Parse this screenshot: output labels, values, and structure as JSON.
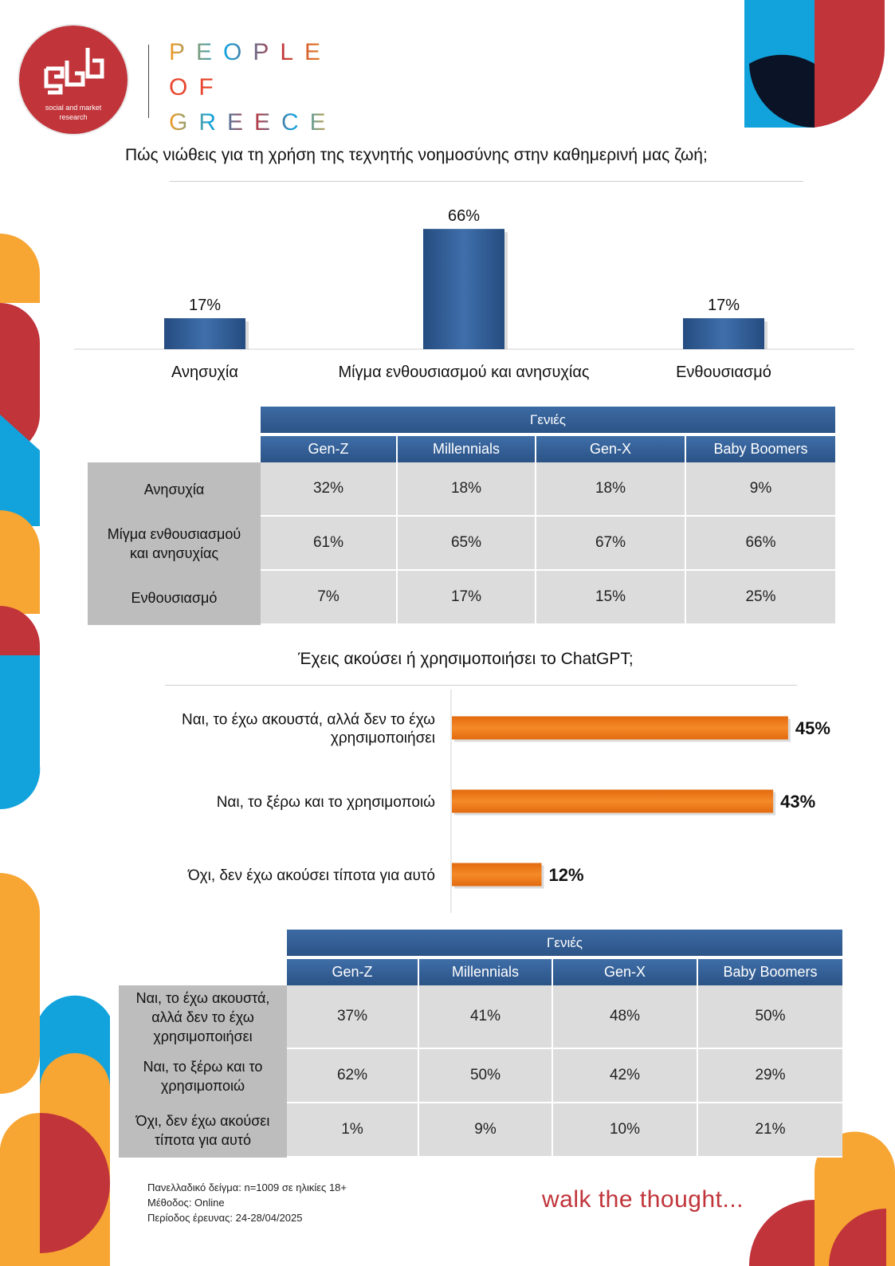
{
  "brand": {
    "logo_caption_line1": "social and market",
    "logo_caption_line2": "research",
    "name_line1": "PEOPLE",
    "name_line2": "OF",
    "name_line3": "GREECE"
  },
  "colors": {
    "navy_bar": "#2f5a94",
    "orange_bar": "#f07d1a",
    "red": "#c0343a",
    "blue": "#12a3dc",
    "orange": "#f7a533",
    "dark": "#0b1327"
  },
  "chart1": {
    "title": "Πώς νιώθεις για τη χρήση της τεχνητής νοημοσύνης στην καθημερινή μας ζωή;"
  },
  "chart2": {
    "title": "Έχεις ακούσει ή χρησιμοποιήσει το ChatGPT;"
  },
  "chart_data": [
    {
      "type": "bar",
      "title": "Πώς νιώθεις για τη χρήση της τεχνητής νοημοσύνης στην καθημερινή μας ζωή;",
      "categories": [
        "Ανησυχία",
        "Μίγμα ενθουσιασμού και ανησυχίας",
        "Ενθουσιασμό"
      ],
      "values": [
        17,
        66,
        17
      ],
      "value_labels": [
        "17%",
        "66%",
        "17%"
      ],
      "ylim": [
        0,
        70
      ]
    },
    {
      "type": "bar",
      "orientation": "horizontal",
      "title": "Έχεις ακούσει ή χρησιμοποιήσει το ChatGPT;",
      "categories": [
        "Ναι, το έχω ακουστά, αλλά δεν το έχω χρησιμοποιήσει",
        "Ναι, το ξέρω και το χρησιμοποιώ",
        "Όχι, δεν έχω ακούσει τίποτα για αυτό"
      ],
      "category_lines": [
        [
          "Ναι, το έχω ακουστά, αλλά δεν το έχω",
          "χρησιμοποιήσει"
        ],
        [
          "Ναι, το ξέρω και το χρησιμοποιώ"
        ],
        [
          "Όχι, δεν έχω ακούσει τίποτα για αυτό"
        ]
      ],
      "values": [
        45,
        43,
        12
      ],
      "value_labels": [
        "45%",
        "43%",
        "12%"
      ],
      "xlim": [
        0,
        48
      ]
    }
  ],
  "table1": {
    "group_header": "Γενιές",
    "columns": [
      "Gen-Z",
      "Millennials",
      "Gen-X",
      "Baby Boomers"
    ],
    "rows": [
      {
        "label_lines": [
          "Ανησυχία"
        ],
        "values": [
          "32%",
          "18%",
          "18%",
          "9%"
        ]
      },
      {
        "label_lines": [
          "Μίγμα ενθουσιασμού",
          "και ανησυχίας"
        ],
        "values": [
          "61%",
          "65%",
          "67%",
          "66%"
        ]
      },
      {
        "label_lines": [
          "Ενθουσιασμό"
        ],
        "values": [
          "7%",
          "17%",
          "15%",
          "25%"
        ]
      }
    ]
  },
  "table2": {
    "group_header": "Γενιές",
    "columns": [
      "Gen-Z",
      "Millennials",
      "Gen-X",
      "Baby Boomers"
    ],
    "rows": [
      {
        "label_lines": [
          "Ναι, το έχω ακουστά,",
          "αλλά δεν το έχω",
          "χρησιμοποιήσει"
        ],
        "values": [
          "37%",
          "41%",
          "48%",
          "50%"
        ]
      },
      {
        "label_lines": [
          "Ναι, το ξέρω και το",
          "χρησιμοποιώ"
        ],
        "values": [
          "62%",
          "50%",
          "42%",
          "29%"
        ]
      },
      {
        "label_lines": [
          "Όχι, δεν έχω ακούσει",
          "τίποτα για αυτό"
        ],
        "values": [
          "1%",
          "9%",
          "10%",
          "21%"
        ]
      }
    ]
  },
  "footer": {
    "sample": "Πανελλαδικό δείγμα: n=1009 σε ηλικίες 18+",
    "method": "Μέθοδος: Online",
    "period": "Περίοδος έρευνας: 24-28/04/2025",
    "tagline": "walk the thought..."
  }
}
